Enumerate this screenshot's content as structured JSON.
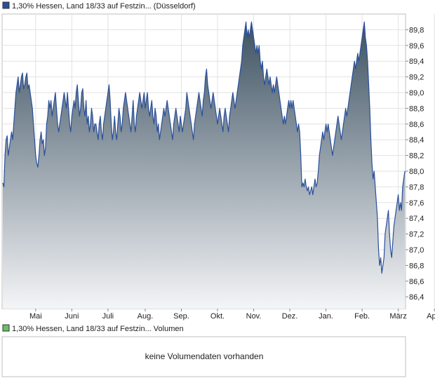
{
  "price_panel": {
    "legend_label": "1,30% Hessen, Land 18/33 auf Festzin... (Düsseldorf)",
    "legend_color": "#2a4f9a"
  },
  "volume_panel": {
    "legend_label": "1,30% Hessen, Land 18/33 auf Festzin... Volumen",
    "legend_color": "#6abf6a",
    "message": "keine Volumendaten vorhanden"
  },
  "chart_data": {
    "type": "area",
    "title": "",
    "xlabel": "",
    "ylabel": "",
    "ylim": [
      86.25,
      90.0
    ],
    "yticks": [
      86.4,
      86.6,
      86.8,
      87.0,
      87.2,
      87.4,
      87.6,
      87.8,
      88.0,
      88.2,
      88.4,
      88.6,
      88.8,
      89.0,
      89.2,
      89.4,
      89.6,
      89.8
    ],
    "ytick_labels": [
      "86,4",
      "86,6",
      "86,8",
      "87,0",
      "87,2",
      "87,4",
      "87,6",
      "87,8",
      "88,0",
      "88,2",
      "88,4",
      "88,6",
      "88,8",
      "89,0",
      "89,2",
      "89,4",
      "89,6",
      "89,8"
    ],
    "xticks": [
      "Mai",
      "Juni",
      "Juli",
      "Aug.",
      "Sep.",
      "Okt.",
      "Nov.",
      "Dez.",
      "Jan.",
      "Feb.",
      "März",
      "April"
    ],
    "xtick_index": [
      30,
      63,
      96,
      130,
      163,
      196,
      229,
      262,
      295,
      328,
      361,
      394
    ],
    "grid": true,
    "line_color": "#2a4f9a",
    "fill_top_color": "#3d5262",
    "fill_bottom_color": "#f4f5f7",
    "series": [
      {
        "name": "",
        "values": [
          87.85,
          87.8,
          88.2,
          88.4,
          88.45,
          88.2,
          88.3,
          88.4,
          88.5,
          88.4,
          88.6,
          88.8,
          89.0,
          89.1,
          89.2,
          89.0,
          89.1,
          89.2,
          89.25,
          89.05,
          89.1,
          89.2,
          89.25,
          89.05,
          89.1,
          89.0,
          88.9,
          88.8,
          88.6,
          88.4,
          88.2,
          88.1,
          88.05,
          88.2,
          88.4,
          88.5,
          88.35,
          88.4,
          88.2,
          88.3,
          88.6,
          88.7,
          88.9,
          88.8,
          88.9,
          88.7,
          88.8,
          88.9,
          89.0,
          88.8,
          88.6,
          88.5,
          88.6,
          88.7,
          88.8,
          88.9,
          89.0,
          88.9,
          88.8,
          89.0,
          88.8,
          88.6,
          88.5,
          88.7,
          88.8,
          88.9,
          88.8,
          89.0,
          89.1,
          88.9,
          88.7,
          88.8,
          89.0,
          89.05,
          88.8,
          88.7,
          88.9,
          88.6,
          88.7,
          88.5,
          88.6,
          88.8,
          88.7,
          88.5,
          88.6,
          88.6,
          88.5,
          88.4,
          88.6,
          88.7,
          88.5,
          88.4,
          88.6,
          88.7,
          88.8,
          88.9,
          89.0,
          89.1,
          88.9,
          88.6,
          88.4,
          88.5,
          88.7,
          88.5,
          88.4,
          88.6,
          88.8,
          88.7,
          88.5,
          88.6,
          88.8,
          88.9,
          89.0,
          88.9,
          88.8,
          88.7,
          88.6,
          88.5,
          88.7,
          88.9,
          88.6,
          88.5,
          88.7,
          88.8,
          88.9,
          89.0,
          88.9,
          88.8,
          88.9,
          89.0,
          88.8,
          88.9,
          89.0,
          88.8,
          88.7,
          88.8,
          88.9,
          88.7,
          88.6,
          88.8,
          88.7,
          88.5,
          88.6,
          88.4,
          88.5,
          88.6,
          88.7,
          88.8,
          88.7,
          88.8,
          88.9,
          88.8,
          88.7,
          88.6,
          88.5,
          88.4,
          88.6,
          88.7,
          88.8,
          88.7,
          88.6,
          88.5,
          88.7,
          88.6,
          88.5,
          88.6,
          88.7,
          88.8,
          89.0,
          88.9,
          88.8,
          88.7,
          88.6,
          88.5,
          88.4,
          88.6,
          88.7,
          88.8,
          88.9,
          89.0,
          88.9,
          88.8,
          88.7,
          88.9,
          89.0,
          89.2,
          89.3,
          89.1,
          89.0,
          88.9,
          88.8,
          88.9,
          89.0,
          88.9,
          88.8,
          88.7,
          88.6,
          88.7,
          88.8,
          88.7,
          88.6,
          88.5,
          88.7,
          88.8,
          88.7,
          88.6,
          88.5,
          88.7,
          88.8,
          88.9,
          89.0,
          88.9,
          88.8,
          88.9,
          89.0,
          89.1,
          89.2,
          89.3,
          89.4,
          89.6,
          89.7,
          89.8,
          89.9,
          89.7,
          89.8,
          89.7,
          89.8,
          89.9,
          89.8,
          89.7,
          89.6,
          89.5,
          89.6,
          89.5,
          89.6,
          89.4,
          89.3,
          89.4,
          89.2,
          89.1,
          89.2,
          89.3,
          89.2,
          89.1,
          89.2,
          89.1,
          89.0,
          89.1,
          89.0,
          89.1,
          89.2,
          89.1,
          89.0,
          88.9,
          88.8,
          88.7,
          88.6,
          88.7,
          88.6,
          88.7,
          88.8,
          88.9,
          88.8,
          88.9,
          88.8,
          88.9,
          88.8,
          88.7,
          88.6,
          88.5,
          88.6,
          88.5,
          88.2,
          87.8,
          87.85,
          87.8,
          87.9,
          87.8,
          87.75,
          87.8,
          87.7,
          87.75,
          87.8,
          87.7,
          87.8,
          87.9,
          87.8,
          87.85,
          88.0,
          88.2,
          88.3,
          88.4,
          88.5,
          88.4,
          88.5,
          88.6,
          88.5,
          88.6,
          88.5,
          88.4,
          88.3,
          88.2,
          88.3,
          88.4,
          88.5,
          88.6,
          88.7,
          88.6,
          88.5,
          88.4,
          88.5,
          88.6,
          88.7,
          88.8,
          88.7,
          88.8,
          88.9,
          89.0,
          89.1,
          89.2,
          89.3,
          89.4,
          89.3,
          89.4,
          89.5,
          89.4,
          89.5,
          89.6,
          89.7,
          89.8,
          89.9,
          89.7,
          89.6,
          89.4,
          89.1,
          88.8,
          88.4,
          88.1,
          87.9,
          88.0,
          87.8,
          87.6,
          87.4,
          87.0,
          86.8,
          86.9,
          86.7,
          86.8,
          86.9,
          87.2,
          87.3,
          87.4,
          87.5,
          87.2,
          87.0,
          86.9,
          87.1,
          87.3,
          87.4,
          87.5,
          87.6,
          87.7,
          87.5,
          87.6,
          87.5,
          87.8,
          87.9,
          88.0
        ]
      }
    ]
  }
}
